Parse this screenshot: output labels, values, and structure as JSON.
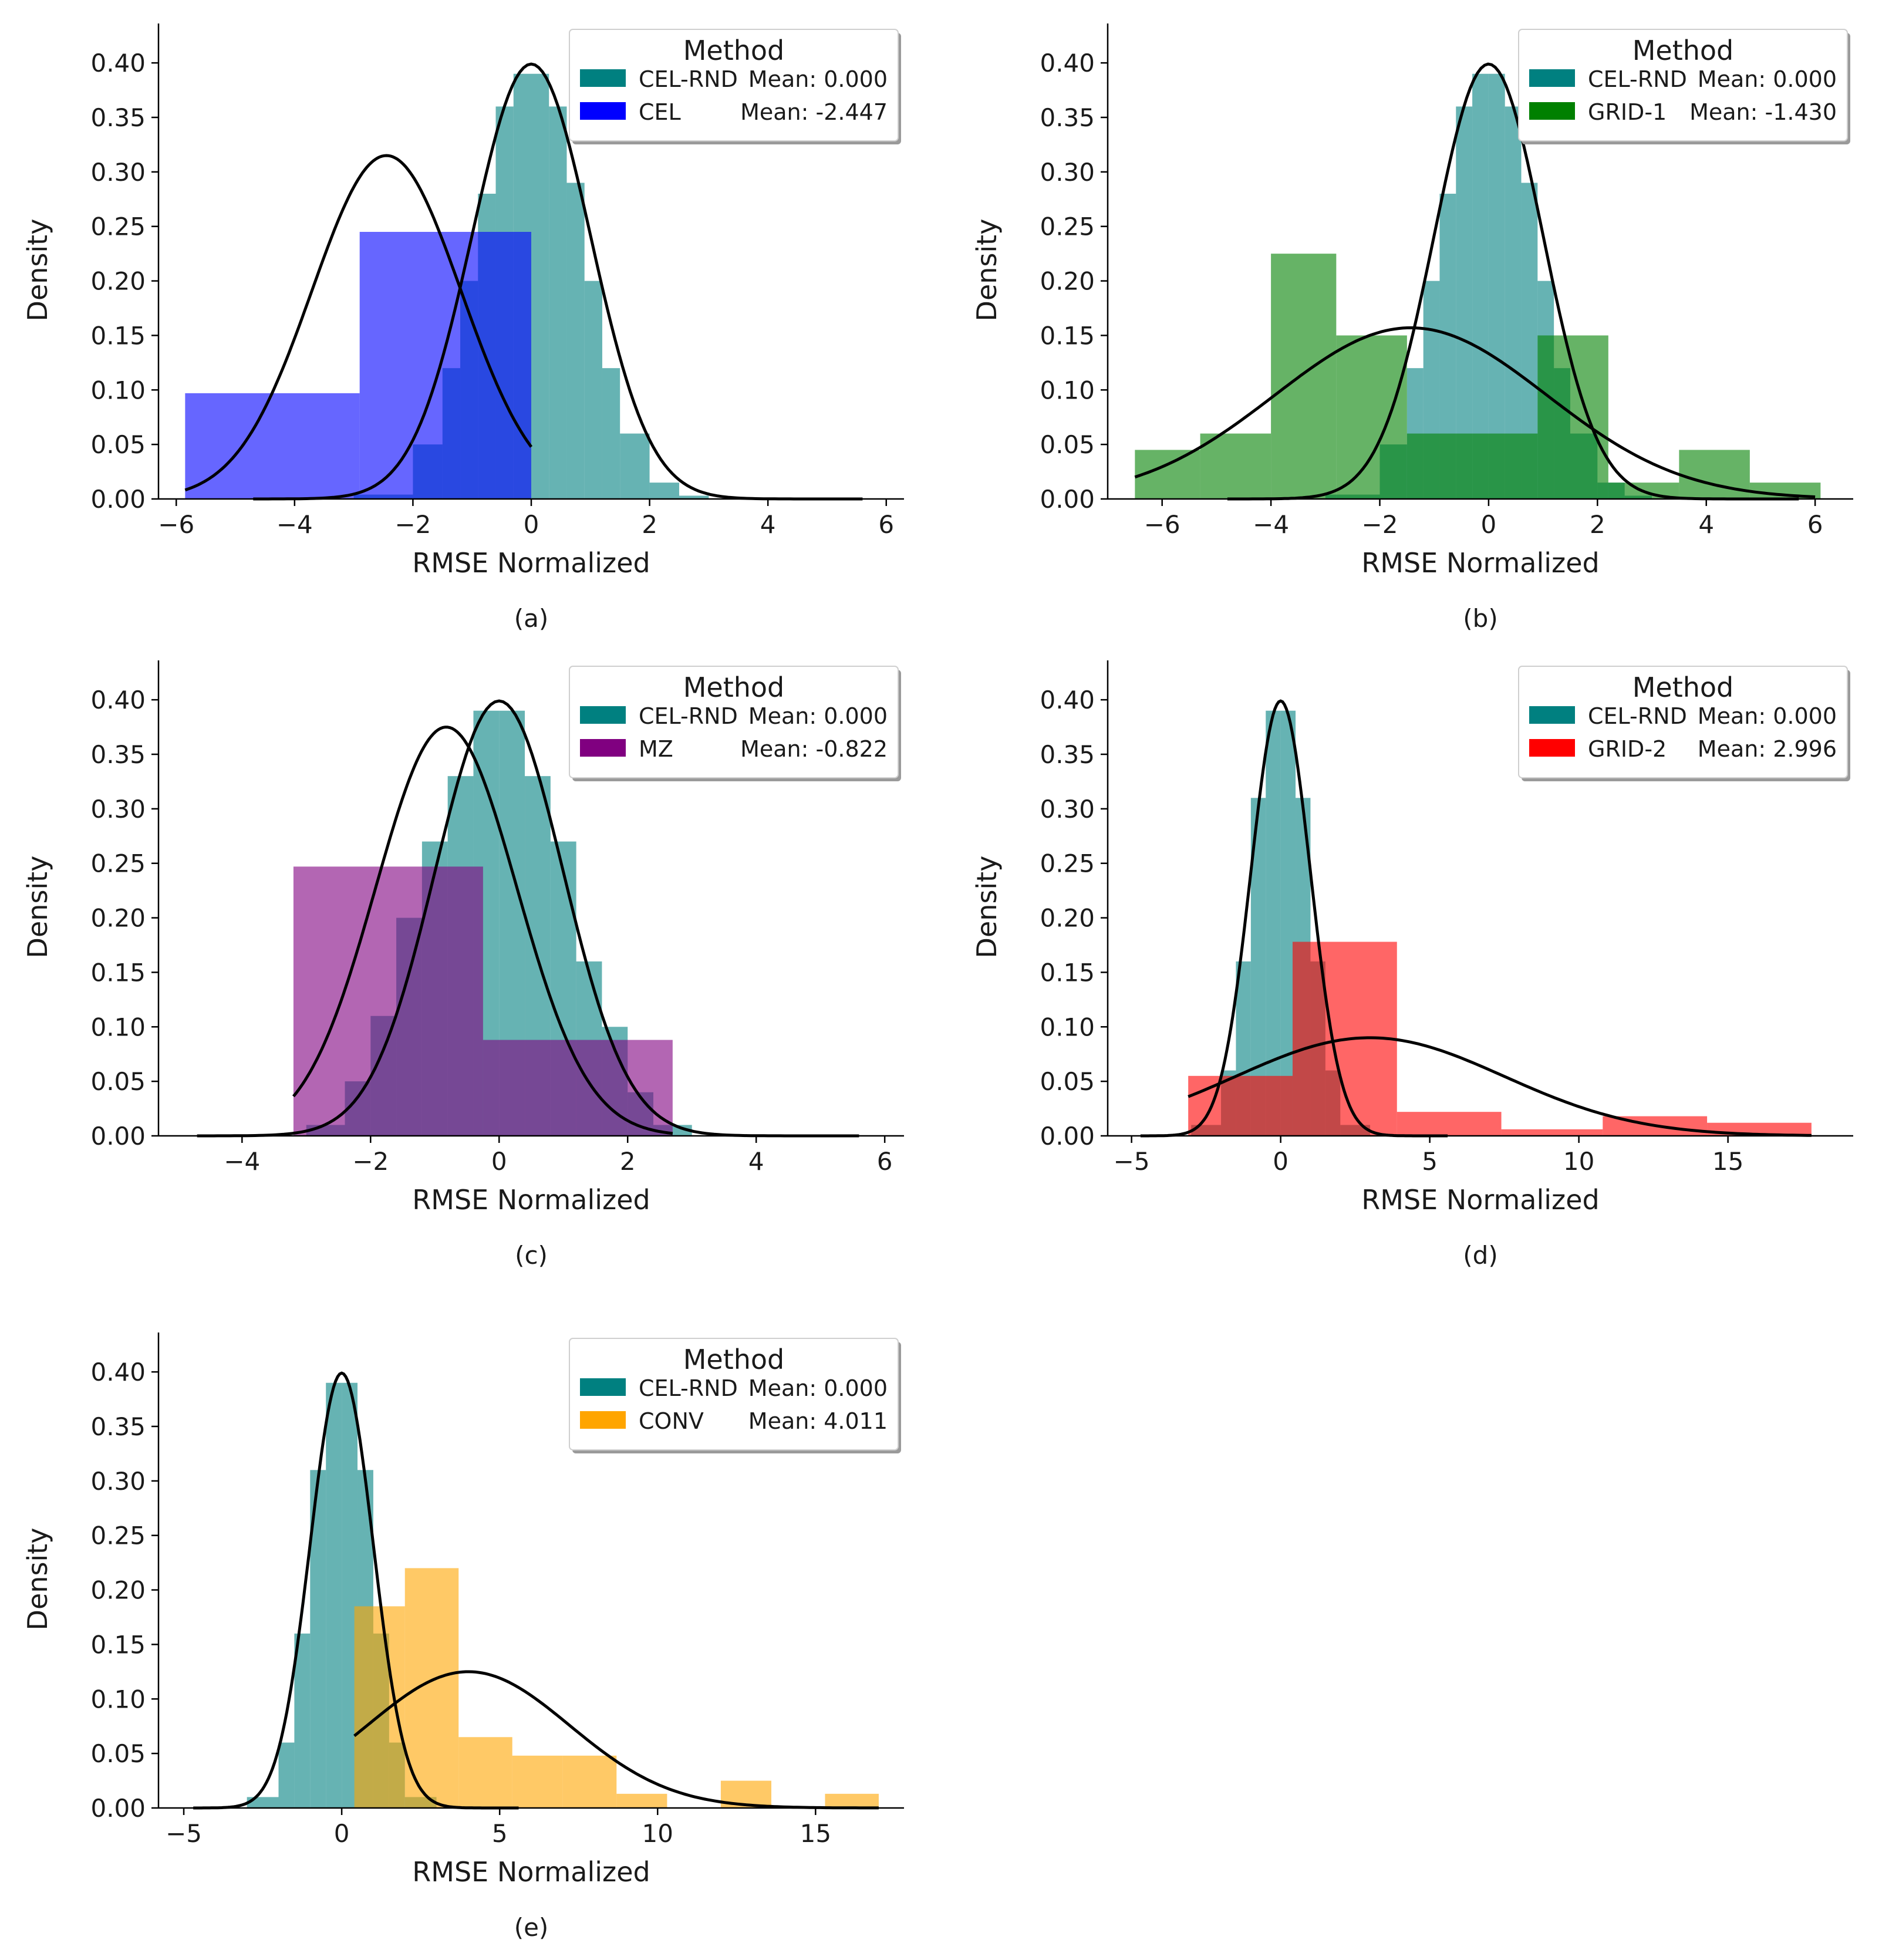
{
  "colors": {
    "ref": "#008080",
    "CEL": "#0000ff",
    "GRID-1": "#008000",
    "MZ": "#800080",
    "GRID-2": "#ff0000",
    "CONV": "#ffa500",
    "curve": "#000000"
  },
  "chart_data": [
    {
      "id": "a",
      "type": "histogram+kde",
      "caption": "(a)",
      "xlabel": "RMSE Normalized",
      "ylabel": "Density",
      "xlim": [
        -6.3,
        6.3
      ],
      "ylim": [
        0,
        0.42
      ],
      "xticks": [
        -6,
        -4,
        -2,
        0,
        2,
        4,
        6
      ],
      "xtick_labels": [
        "−6",
        "−4",
        "−2",
        "0",
        "2",
        "4",
        "6"
      ],
      "yticks": [
        0,
        0.05,
        0.1,
        0.15,
        0.2,
        0.25,
        0.3,
        0.35,
        0.4
      ],
      "ytick_labels": [
        "0.00",
        "0.05",
        "0.10",
        "0.15",
        "0.20",
        "0.25",
        "0.30",
        "0.35",
        "0.40"
      ],
      "legend": {
        "title": "Method",
        "position": "top-right",
        "entries": [
          {
            "name": "CEL-RND",
            "mean_label": "Mean: 0.000",
            "color_key": "ref"
          },
          {
            "name": "CEL",
            "mean_label": "Mean: -2.447",
            "color_key": "CEL"
          }
        ]
      },
      "series": [
        {
          "name": "CEL-RND",
          "color_key": "ref",
          "mean": 0,
          "sd": 1,
          "bins": [
            -3.0,
            -2.0,
            -1.5,
            -1.2,
            -0.9,
            -0.6,
            -0.3,
            0.0,
            0.3,
            0.6,
            0.9,
            1.2,
            1.5,
            2.0,
            2.5,
            3.0
          ],
          "heights": [
            0.004,
            0.05,
            0.12,
            0.2,
            0.28,
            0.36,
            0.39,
            0.39,
            0.36,
            0.29,
            0.2,
            0.12,
            0.06,
            0.015,
            0.003
          ],
          "kde_range": [
            -4.7,
            5.6
          ]
        },
        {
          "name": "CEL",
          "color_key": "CEL",
          "mean": -2.447,
          "sd": 1.26,
          "peak": 0.315,
          "bins": [
            -5.85,
            -2.9,
            0.0
          ],
          "heights": [
            0.097,
            0.245
          ],
          "kde_range": [
            -5.85,
            0.0
          ]
        }
      ]
    },
    {
      "id": "b",
      "type": "histogram+kde",
      "caption": "(b)",
      "xlabel": "RMSE Normalized",
      "ylabel": "Density",
      "xlim": [
        -7.0,
        6.7
      ],
      "ylim": [
        0,
        0.42
      ],
      "xticks": [
        -6,
        -4,
        -2,
        0,
        2,
        4,
        6
      ],
      "xtick_labels": [
        "−6",
        "−4",
        "−2",
        "0",
        "2",
        "4",
        "6"
      ],
      "yticks": [
        0,
        0.05,
        0.1,
        0.15,
        0.2,
        0.25,
        0.3,
        0.35,
        0.4
      ],
      "ytick_labels": [
        "0.00",
        "0.05",
        "0.10",
        "0.15",
        "0.20",
        "0.25",
        "0.30",
        "0.35",
        "0.40"
      ],
      "legend": {
        "title": "Method",
        "position": "top-right",
        "entries": [
          {
            "name": "CEL-RND",
            "mean_label": "Mean: 0.000",
            "color_key": "ref"
          },
          {
            "name": "GRID-1",
            "mean_label": "Mean: -1.430",
            "color_key": "GRID-1"
          }
        ]
      },
      "series": [
        {
          "name": "CEL-RND",
          "color_key": "ref",
          "mean": 0,
          "sd": 1,
          "bins": [
            -3.0,
            -2.0,
            -1.5,
            -1.2,
            -0.9,
            -0.6,
            -0.3,
            0.0,
            0.3,
            0.6,
            0.9,
            1.2,
            1.5,
            2.0,
            2.5,
            3.0
          ],
          "heights": [
            0.004,
            0.05,
            0.12,
            0.2,
            0.28,
            0.36,
            0.39,
            0.39,
            0.36,
            0.29,
            0.2,
            0.12,
            0.06,
            0.015,
            0.003
          ],
          "kde_range": [
            -4.8,
            5.7
          ]
        },
        {
          "name": "GRID-1",
          "color_key": "GRID-1",
          "mean": -1.43,
          "sd": 2.5,
          "peak": 0.157,
          "bins": [
            -6.5,
            -5.3,
            -4.0,
            -2.8,
            -1.5,
            -0.3,
            0.9,
            2.2,
            3.5,
            4.8,
            6.1
          ],
          "heights": [
            0.045,
            0.06,
            0.225,
            0.15,
            0.06,
            0.06,
            0.15,
            0.015,
            0.045,
            0.015
          ],
          "kde_range": [
            -6.5,
            6.0
          ]
        }
      ]
    },
    {
      "id": "c",
      "type": "histogram+kde",
      "caption": "(c)",
      "xlabel": "RMSE Normalized",
      "ylabel": "Density",
      "xlim": [
        -5.3,
        6.3
      ],
      "ylim": [
        0,
        0.42
      ],
      "xticks": [
        -4,
        -2,
        0,
        2,
        4,
        6
      ],
      "xtick_labels": [
        "−4",
        "−2",
        "0",
        "2",
        "4",
        "6"
      ],
      "yticks": [
        0,
        0.05,
        0.1,
        0.15,
        0.2,
        0.25,
        0.3,
        0.35,
        0.4
      ],
      "ytick_labels": [
        "0.00",
        "0.05",
        "0.10",
        "0.15",
        "0.20",
        "0.25",
        "0.30",
        "0.35",
        "0.40"
      ],
      "legend": {
        "title": "Method",
        "position": "top-right",
        "entries": [
          {
            "name": "CEL-RND",
            "mean_label": "Mean: 0.000",
            "color_key": "ref"
          },
          {
            "name": "MZ",
            "mean_label": "Mean: -0.822",
            "color_key": "MZ"
          }
        ]
      },
      "series": [
        {
          "name": "CEL-RND",
          "color_key": "ref",
          "mean": 0,
          "sd": 1,
          "bins": [
            -3.0,
            -2.4,
            -2.0,
            -1.6,
            -1.2,
            -0.8,
            -0.4,
            0.0,
            0.4,
            0.8,
            1.2,
            1.6,
            2.0,
            2.4,
            3.0
          ],
          "heights": [
            0.01,
            0.05,
            0.11,
            0.2,
            0.27,
            0.33,
            0.39,
            0.39,
            0.33,
            0.27,
            0.16,
            0.1,
            0.04,
            0.01
          ],
          "kde_range": [
            -4.7,
            5.6
          ]
        },
        {
          "name": "MZ",
          "color_key": "MZ",
          "mean": -0.822,
          "sd": 1.1,
          "peak": 0.375,
          "bins": [
            -3.2,
            -0.25,
            2.7
          ],
          "heights": [
            0.247,
            0.088
          ],
          "kde_range": [
            -3.2,
            2.7
          ]
        }
      ]
    },
    {
      "id": "d",
      "type": "histogram+kde",
      "caption": "(d)",
      "xlabel": "RMSE Normalized",
      "ylabel": "Density",
      "xlim": [
        -5.8,
        19.2
      ],
      "ylim": [
        0,
        0.42
      ],
      "xticks": [
        -5,
        0,
        5,
        10,
        15
      ],
      "xtick_labels": [
        "−5",
        "0",
        "5",
        "10",
        "15"
      ],
      "yticks": [
        0,
        0.05,
        0.1,
        0.15,
        0.2,
        0.25,
        0.3,
        0.35,
        0.4
      ],
      "ytick_labels": [
        "0.00",
        "0.05",
        "0.10",
        "0.15",
        "0.20",
        "0.25",
        "0.30",
        "0.35",
        "0.40"
      ],
      "legend": {
        "title": "Method",
        "position": "top-right",
        "entries": [
          {
            "name": "CEL-RND",
            "mean_label": "Mean: 0.000",
            "color_key": "ref"
          },
          {
            "name": "GRID-2",
            "mean_label": "Mean: 2.996",
            "color_key": "GRID-2"
          }
        ]
      },
      "series": [
        {
          "name": "CEL-RND",
          "color_key": "ref",
          "mean": 0,
          "sd": 1,
          "bins": [
            -3.0,
            -2.0,
            -1.5,
            -1.0,
            -0.5,
            0.0,
            0.5,
            1.0,
            1.5,
            2.0,
            3.0
          ],
          "heights": [
            0.01,
            0.06,
            0.16,
            0.31,
            0.39,
            0.39,
            0.31,
            0.16,
            0.06,
            0.01
          ],
          "kde_range": [
            -4.7,
            5.6
          ]
        },
        {
          "name": "GRID-2",
          "color_key": "GRID-2",
          "mean": 2.996,
          "sd": 4.5,
          "peak": 0.09,
          "bins": [
            -3.1,
            0.4,
            3.9,
            7.4,
            10.8,
            14.3,
            17.8
          ],
          "heights": [
            0.055,
            0.178,
            0.022,
            0.006,
            0.018,
            0.012
          ],
          "kde_range": [
            -3.1,
            17.8
          ]
        }
      ]
    },
    {
      "id": "e",
      "type": "histogram+kde",
      "caption": "(e)",
      "xlabel": "RMSE Normalized",
      "ylabel": "Density",
      "xlim": [
        -5.8,
        17.8
      ],
      "ylim": [
        0,
        0.42
      ],
      "xticks": [
        -5,
        0,
        5,
        10,
        15
      ],
      "xtick_labels": [
        "−5",
        "0",
        "5",
        "10",
        "15"
      ],
      "yticks": [
        0,
        0.05,
        0.1,
        0.15,
        0.2,
        0.25,
        0.3,
        0.35,
        0.4
      ],
      "ytick_labels": [
        "0.00",
        "0.05",
        "0.10",
        "0.15",
        "0.20",
        "0.25",
        "0.30",
        "0.35",
        "0.40"
      ],
      "legend": {
        "title": "Method",
        "position": "top-right",
        "entries": [
          {
            "name": "CEL-RND",
            "mean_label": "Mean: 0.000",
            "color_key": "ref"
          },
          {
            "name": "CONV",
            "mean_label": "Mean: 4.011",
            "color_key": "CONV"
          }
        ]
      },
      "series": [
        {
          "name": "CEL-RND",
          "color_key": "ref",
          "mean": 0,
          "sd": 1,
          "bins": [
            -3.0,
            -2.0,
            -1.5,
            -1.0,
            -0.5,
            0.0,
            0.5,
            1.0,
            1.5,
            2.0,
            3.0
          ],
          "heights": [
            0.01,
            0.06,
            0.16,
            0.31,
            0.39,
            0.39,
            0.31,
            0.16,
            0.06,
            0.01
          ],
          "kde_range": [
            -4.7,
            5.6
          ]
        },
        {
          "name": "CONV",
          "color_key": "CONV",
          "mean": 4.011,
          "sd": 3.2,
          "peak": 0.125,
          "bins": [
            0.4,
            2.0,
            3.7,
            5.4,
            7.0,
            8.7,
            10.3,
            12.0,
            13.6,
            15.3,
            17.0
          ],
          "heights": [
            0.185,
            0.22,
            0.065,
            0.048,
            0.048,
            0.013,
            0.0,
            0.025,
            0.0,
            0.013
          ],
          "kde_range": [
            0.4,
            17.0
          ]
        }
      ]
    }
  ]
}
